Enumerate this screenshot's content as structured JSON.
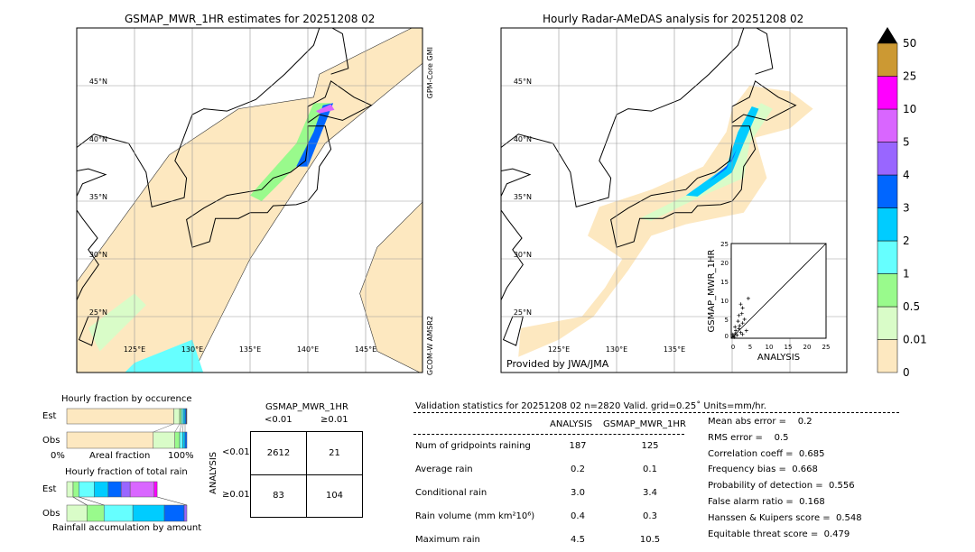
{
  "left_map": {
    "title": "GSMAP_MWR_1HR estimates for 20251208 02",
    "side_top": "GPM-Core GMI",
    "side_bottom": "GCOM-W AMSR2"
  },
  "right_map": {
    "title": "Hourly Radar-AMeDAS analysis for 20251208 02",
    "credit": "Provided by JWA/JMA"
  },
  "axes": {
    "lon_ticks": [
      "125°E",
      "130°E",
      "135°E",
      "140°E",
      "145°E"
    ],
    "lat_ticks": [
      "45°N",
      "40°N",
      "35°N",
      "30°N",
      "25°N"
    ],
    "lon_range": [
      120,
      150
    ],
    "lat_range": [
      20,
      50
    ]
  },
  "colorbar": {
    "levels": [
      "0",
      "0.01",
      "0.5",
      "1",
      "2",
      "3",
      "4",
      "5",
      "10",
      "25",
      "50"
    ],
    "colors": [
      "#fde8c0",
      "#d9fcc8",
      "#99fa8c",
      "#66ffff",
      "#00ccff",
      "#0066ff",
      "#9966ff",
      "#d966ff",
      "#ff00ff",
      "#cc9933"
    ],
    "extend_color": "#000000"
  },
  "chart_data": [
    {
      "type": "scatter",
      "xlabel": "ANALYSIS",
      "ylabel": "GSMAP_MWR_1HR",
      "xlim": [
        0,
        25
      ],
      "ylim": [
        0,
        25
      ],
      "ticks": [
        "0",
        "5",
        "10",
        "15",
        "20",
        "25"
      ],
      "points": [
        [
          0.5,
          0.5
        ],
        [
          1,
          1.2
        ],
        [
          1.5,
          0.8
        ],
        [
          2,
          2.5
        ],
        [
          2.5,
          1.5
        ],
        [
          3,
          4
        ],
        [
          1,
          3
        ],
        [
          2,
          6
        ],
        [
          3,
          8
        ],
        [
          4.5,
          10.5
        ],
        [
          2.5,
          9
        ],
        [
          3.5,
          5
        ],
        [
          1.2,
          2
        ],
        [
          0.8,
          0.3
        ],
        [
          2.2,
          3.3
        ],
        [
          4,
          2
        ],
        [
          3,
          1
        ],
        [
          1.8,
          4.5
        ],
        [
          0.3,
          1
        ],
        [
          2.8,
          6.5
        ]
      ]
    },
    {
      "type": "bar",
      "title": "Hourly fraction by occurence",
      "xlabel": "Areal fraction",
      "xtick_left": "0%",
      "xtick_right": "100%",
      "rows": [
        "Est",
        "Obs"
      ],
      "est": [
        89,
        5,
        1.5,
        1.5,
        1.5,
        1,
        0.5
      ],
      "obs": [
        72,
        18,
        4,
        2.5,
        2,
        1.5
      ]
    },
    {
      "type": "bar",
      "title": "Hourly fraction of total rain",
      "xlabel": "Rainfall accumulation by amount",
      "rows": [
        "Est",
        "Obs"
      ],
      "est": [
        5.25,
        4.75,
        12.75,
        11.75,
        10.75,
        7.5,
        20,
        2.5
      ],
      "obs": [
        16.75,
        14.25,
        24,
        26.25,
        16.5,
        2.25
      ]
    },
    {
      "type": "table",
      "title": "GSMAP_MWR_1HR",
      "col_headers": [
        "<0.01",
        "≥0.01"
      ],
      "row_label": "ANALYSIS",
      "row_headers": [
        "<0.01",
        "≥0.01"
      ],
      "cells": [
        [
          "2612",
          "21"
        ],
        [
          "83",
          "104"
        ]
      ]
    }
  ],
  "stats": {
    "header": "Validation statistics for 20251208 02  n=2820 Valid. grid=0.25˚ Units=mm/hr.",
    "col1": "ANALYSIS",
    "col2": "GSMAP_MWR_1HR",
    "rows": [
      {
        "label": "Num of gridpoints raining",
        "a": "187",
        "g": "125"
      },
      {
        "label": "Average rain",
        "a": "0.2",
        "g": "0.1"
      },
      {
        "label": "Conditional rain",
        "a": "3.0",
        "g": "3.4"
      },
      {
        "label": "Rain volume (mm km²10⁶)",
        "a": "0.4",
        "g": "0.3"
      },
      {
        "label": "Maximum rain",
        "a": "4.5",
        "g": "10.5"
      }
    ],
    "scores": [
      "Mean abs error =    0.2",
      "RMS error =    0.5",
      "Correlation coeff =  0.685",
      "Frequency bias =  0.668",
      "Probability of detection =  0.556",
      "False alarm ratio =  0.168",
      "Hanssen & Kuipers score =  0.548",
      "Equitable threat score =  0.479"
    ]
  }
}
